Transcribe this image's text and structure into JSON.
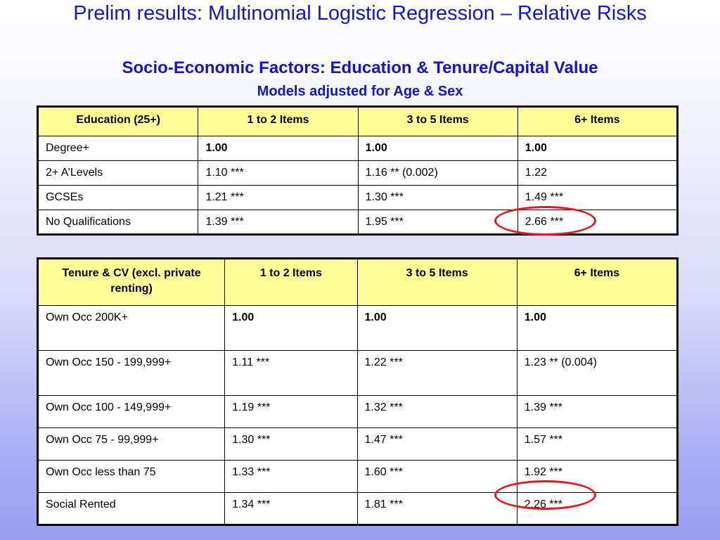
{
  "slide": {
    "title": "Prelim results: Multinomial Logistic Regression – Relative Risks",
    "subtitle": "Socio-Economic Factors: Education & Tenure/Capital Value",
    "note": "Models adjusted for Age & Sex"
  },
  "education_table": {
    "headers": [
      "Education (25+)",
      "1 to 2 Items",
      "3 to 5 Items",
      "6+ Items"
    ],
    "rows": [
      {
        "label": "Degree+",
        "values": [
          "1.00",
          "1.00",
          "1.00"
        ]
      },
      {
        "label": "2+ A’Levels",
        "values": [
          "1.10 ***",
          "1.16 ** (0.002)",
          "1.22"
        ]
      },
      {
        "label": "GCSEs",
        "values": [
          "1.21 ***",
          "1.30 ***",
          "1.49 ***"
        ]
      },
      {
        "label": "No Qualifications",
        "values": [
          "1.39 ***",
          "1.95 ***",
          "2.66 ***"
        ]
      }
    ],
    "highlighted_cell": "No Qualifications / 6+ Items"
  },
  "tenure_table": {
    "headers": [
      "Tenure & CV (excl. private renting)",
      "1 to 2 Items",
      "3 to 5 Items",
      "6+ Items"
    ],
    "rows": [
      {
        "label": "Own Occ 200K+",
        "values": [
          "1.00",
          "1.00",
          "1.00"
        ]
      },
      {
        "label": "Own Occ 150 - 199,999+",
        "values": [
          "1.11 ***",
          "1.22 ***",
          "1.23 ** (0.004)"
        ]
      },
      {
        "label": "Own Occ 100 - 149,999+",
        "values": [
          "1.19 ***",
          "1.32 ***",
          "1.39 ***"
        ]
      },
      {
        "label": "Own Occ 75 - 99,999+",
        "values": [
          "1.30 ***",
          "1.47 ***",
          "1.57 ***"
        ]
      },
      {
        "label": "Own Occ less than 75",
        "values": [
          "1.33 ***",
          "1.60 ***",
          "1.92 ***"
        ]
      },
      {
        "label": "Social Rented",
        "values": [
          "1.34 ***",
          "1.81 ***",
          "2.26 ***"
        ]
      }
    ],
    "highlighted_cell": "Social Rented / 6+ Items"
  },
  "colors": {
    "title_text": "#1414CC",
    "header_fill": "#FFFF99",
    "highlight_ring": "#E8141E",
    "background_top": "#FFFFFF",
    "background_bottom": "#9C9FF1"
  }
}
